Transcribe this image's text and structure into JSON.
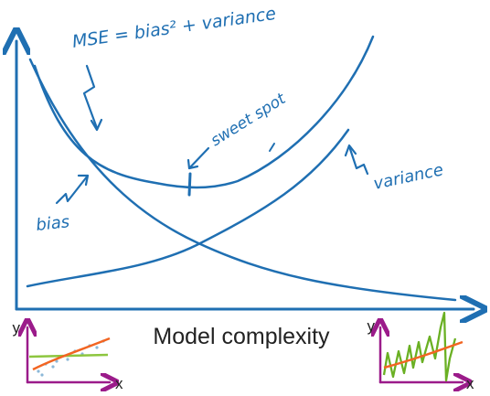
{
  "labels": {
    "mse": "MSE = bias² + variance",
    "sweet_spot": "sweet spot",
    "bias": "bias",
    "variance": "variance",
    "x_axis": "Model complexity"
  },
  "insets": {
    "left": {
      "y_label": "y",
      "x_label": "x"
    },
    "right": {
      "y_label": "y",
      "x_label": "x"
    }
  },
  "colors": {
    "ink": "#1f6fb2",
    "inset_axis": "#9b1b8a",
    "simple_fit": "#8dc63f",
    "flexible_fit": "#f26522",
    "overfit": "#6ab023",
    "data_points": "#8bb8d8",
    "caption": "#222222"
  }
}
